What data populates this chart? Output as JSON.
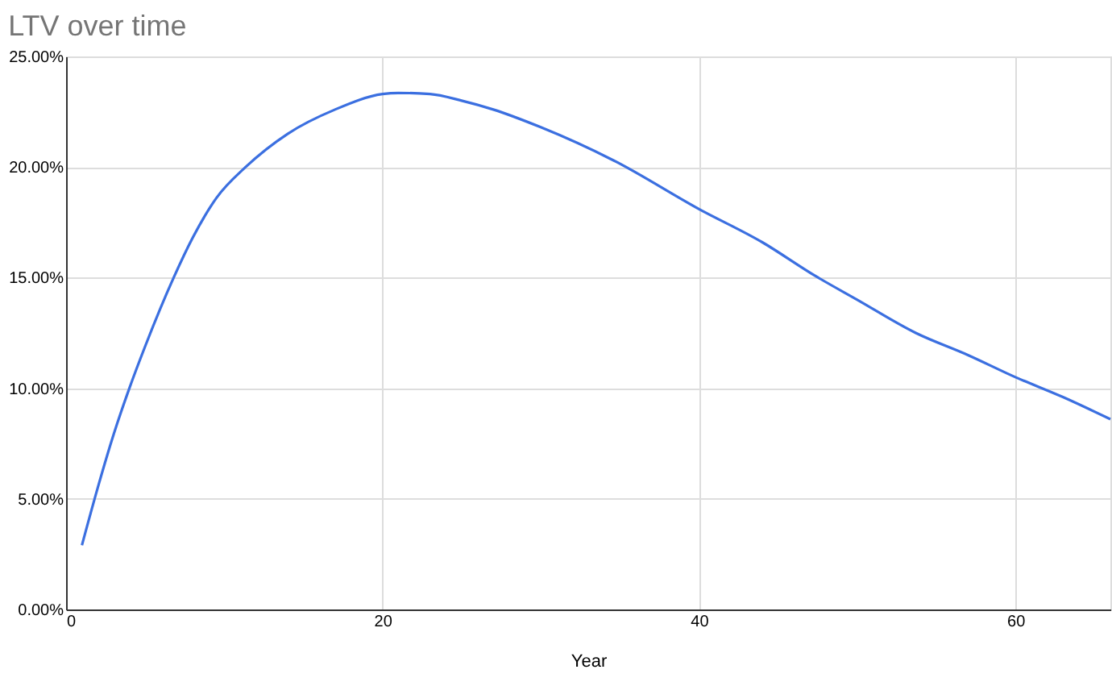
{
  "chart_data": {
    "type": "line",
    "title": "LTV over time",
    "xlabel": "Year",
    "x": [
      1,
      2,
      3,
      4,
      5,
      6.8,
      8,
      9.5,
      11.35,
      14,
      17,
      20,
      21,
      23,
      25,
      27,
      30,
      34.6,
      40,
      44,
      47.3,
      50,
      53.7,
      57,
      60,
      63,
      66
    ],
    "series": [
      {
        "color": "#3b6fe0",
        "values": [
          2.9,
          5.5,
          7.9,
          10.0,
          11.9,
          15.0,
          16.8,
          18.6,
          20.0,
          21.5,
          22.6,
          23.3,
          23.35,
          23.3,
          23.0,
          22.6,
          21.8,
          20.3,
          18.1,
          16.6,
          15.1,
          14.0,
          12.5,
          11.5,
          10.5,
          9.6,
          8.6
        ]
      }
    ],
    "xlim": [
      0,
      66
    ],
    "xticks": [
      0,
      20,
      40,
      60
    ],
    "ylim": [
      0,
      25
    ],
    "yticks": [
      {
        "value": 0,
        "label": "0.00%"
      },
      {
        "value": 5,
        "label": "5.00%"
      },
      {
        "value": 10,
        "label": "10.00%"
      },
      {
        "value": 15,
        "label": "15.00%"
      },
      {
        "value": 20,
        "label": "20.00%"
      },
      {
        "value": 25,
        "label": "25.00%"
      }
    ],
    "grid": true,
    "marker": "none",
    "line_style": "solid"
  }
}
